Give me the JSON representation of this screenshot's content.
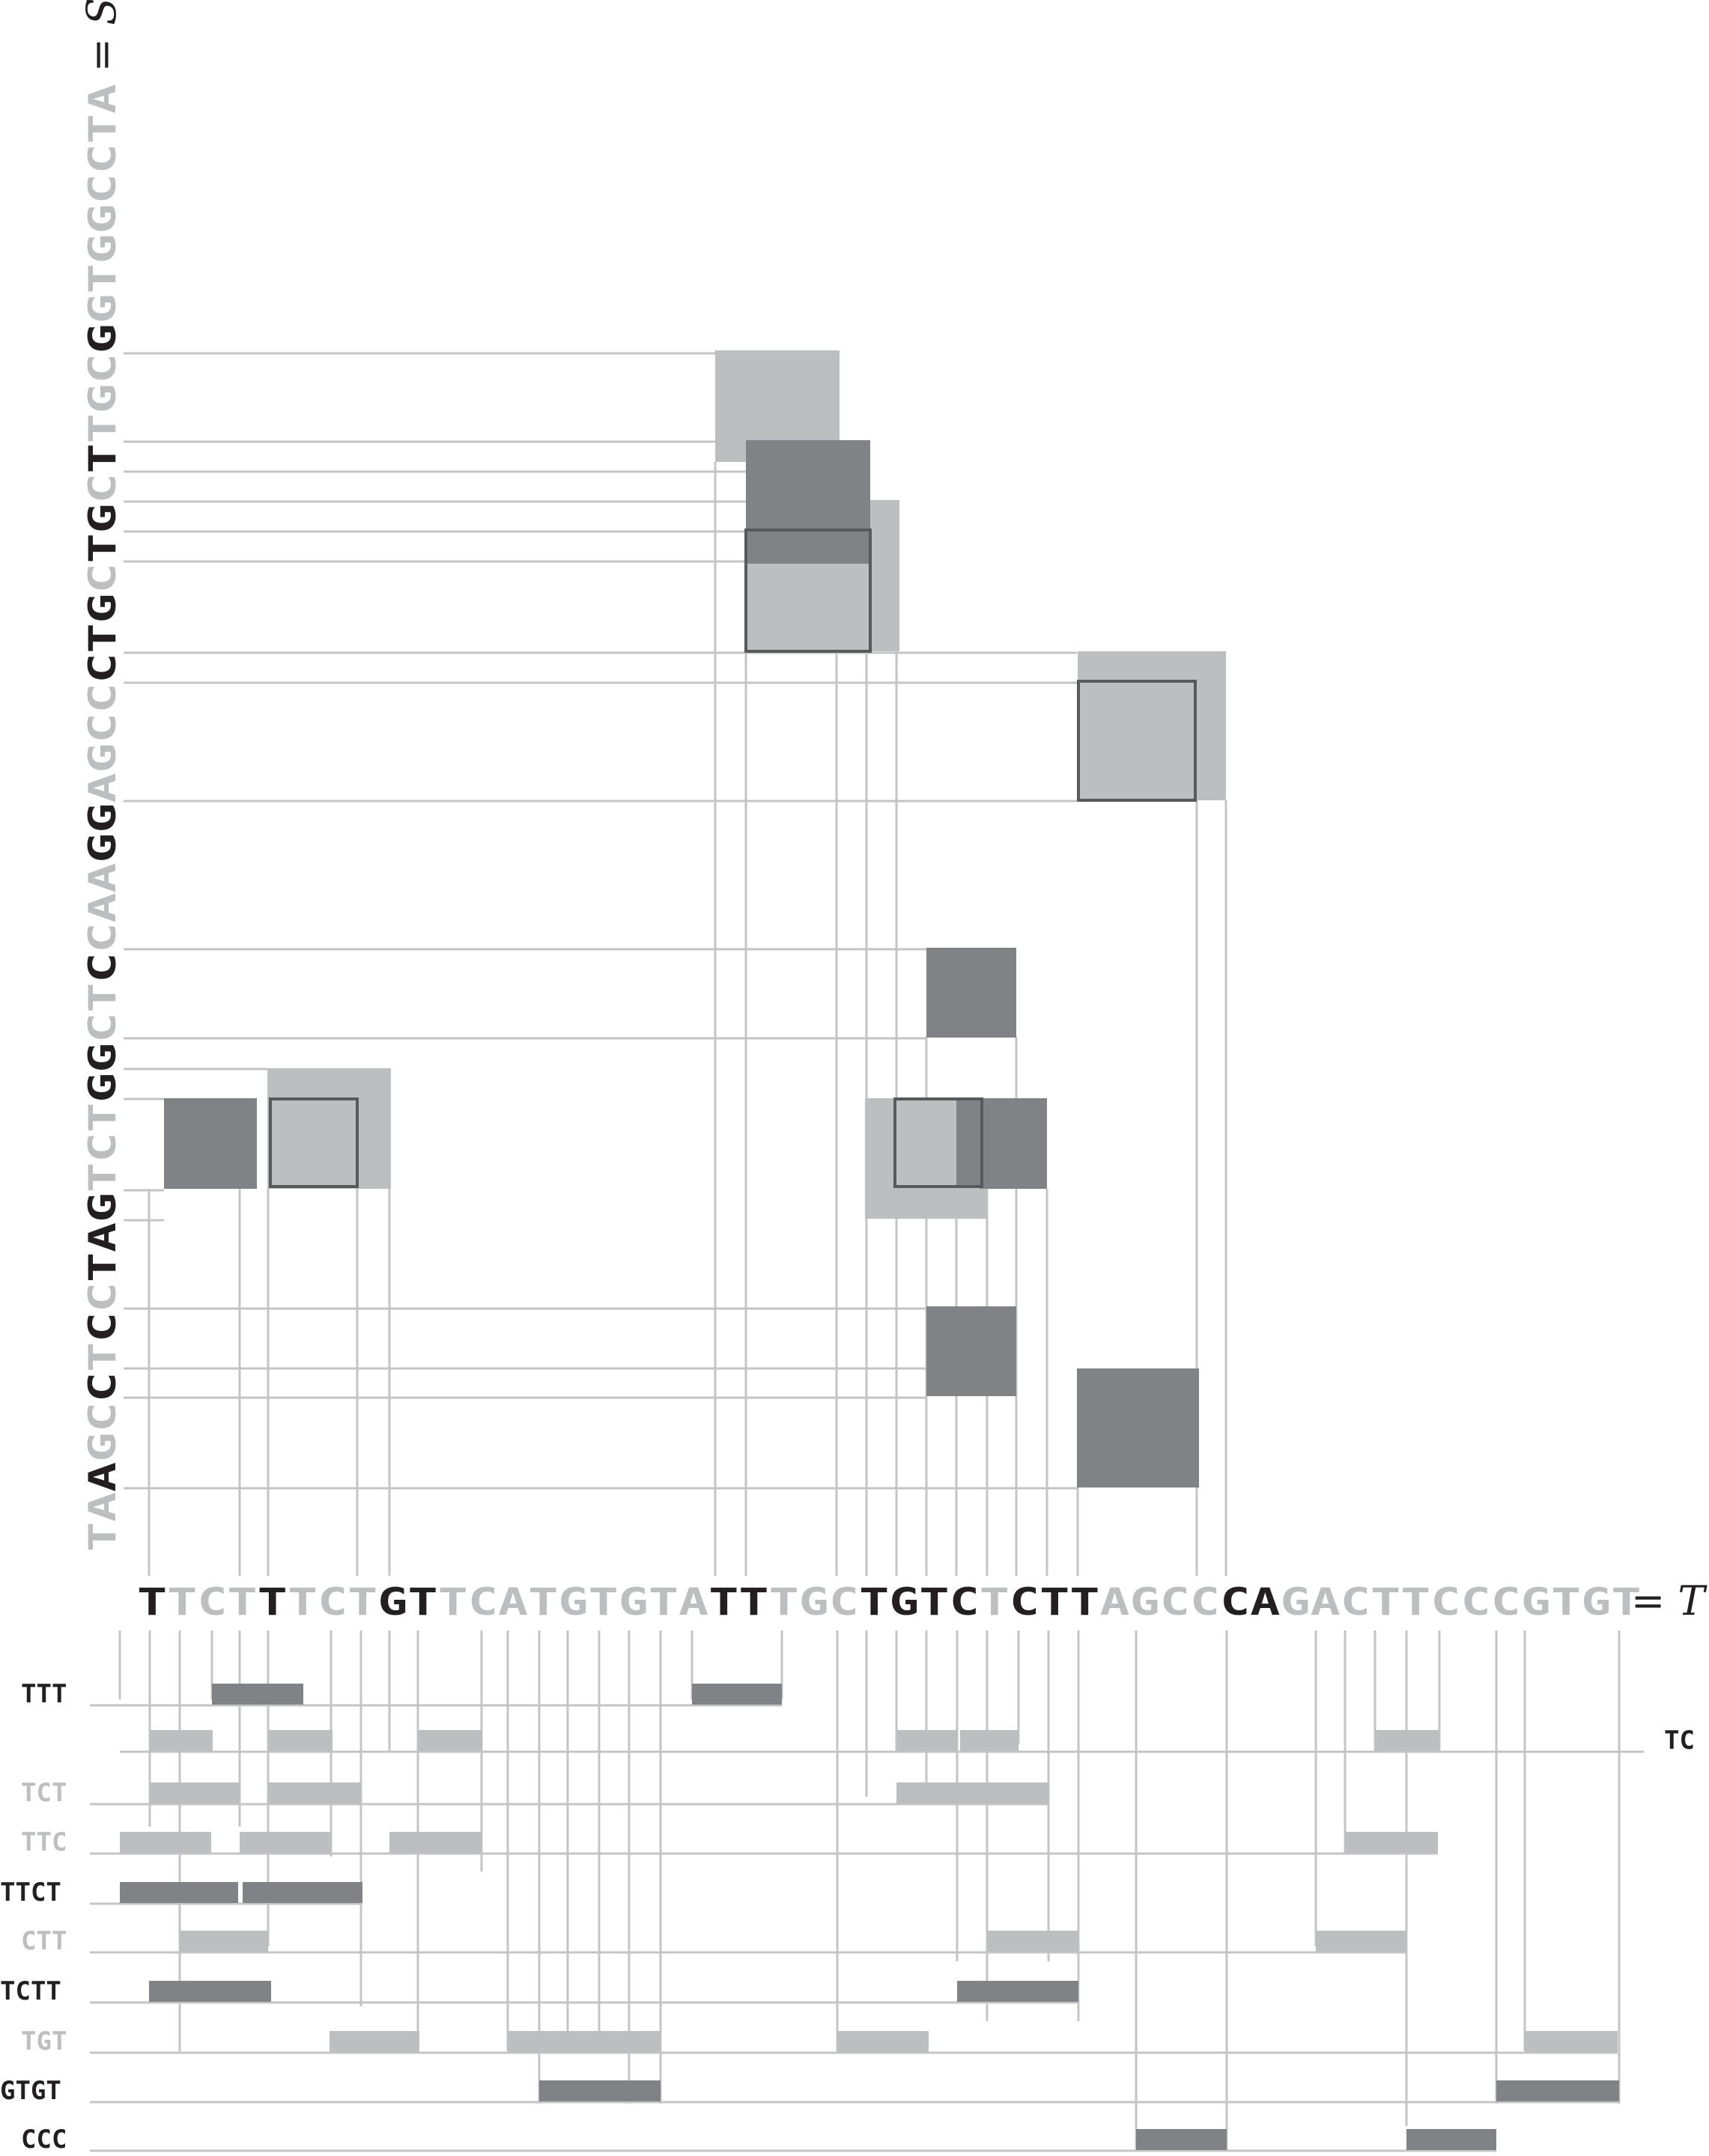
{
  "figure": {
    "t_sequence": "TTCTTTCTGTTCATGTGTATTTGCTGTCTCTTAGCCCAGACTTCCCGTGT",
    "t_highlight": [
      0,
      4,
      8,
      9,
      19,
      20,
      24,
      25,
      26,
      27,
      29,
      30,
      31,
      36,
      37
    ],
    "t_equals": "=",
    "t_name": "T",
    "s_sequence": "TAAGCCTCCTAGTCTGGCTCCAAGGAGCCCTGCTGCTTGCGGTGGCCTA",
    "s_highlight": [
      2,
      5,
      7,
      9,
      10,
      11,
      15,
      16,
      19,
      23,
      24,
      29,
      30,
      31,
      33,
      34,
      36,
      40
    ],
    "s_equals": "=",
    "s_name": "S",
    "colors": {
      "dark": "#818285",
      "light": "#bcbec0",
      "line": "#c4c4c6",
      "frame": "#58595b",
      "text_dark": "#231f20",
      "text_light": "#bcbec0"
    },
    "kmers": [
      {
        "label": "TTT",
        "shade": "dark"
      },
      {
        "label": "TC",
        "shade": "dark"
      },
      {
        "label": "TCT",
        "shade": "light"
      },
      {
        "label": "TTC",
        "shade": "light"
      },
      {
        "label": "TTCT",
        "shade": "dark"
      },
      {
        "label": "CTT",
        "shade": "light"
      },
      {
        "label": "TCTT",
        "shade": "dark"
      },
      {
        "label": "TGT",
        "shade": "light"
      },
      {
        "label": "GTGT",
        "shade": "dark"
      },
      {
        "label": "CCC",
        "shade": "dark"
      }
    ],
    "grid_boxes": [
      {
        "shade": "dark",
        "frame": false
      },
      {
        "shade": "light",
        "frame": true
      },
      {
        "shade": "light",
        "frame": true
      },
      {
        "shade": "dark",
        "frame": false
      },
      {
        "shade": "dark",
        "frame": false
      },
      {
        "shade": "dark",
        "frame": false
      },
      {
        "shade": "light",
        "frame": true
      },
      {
        "shade": "dark",
        "frame": true
      },
      {
        "shade": "dark",
        "frame": false
      },
      {
        "shade": "light",
        "frame": true
      }
    ]
  }
}
